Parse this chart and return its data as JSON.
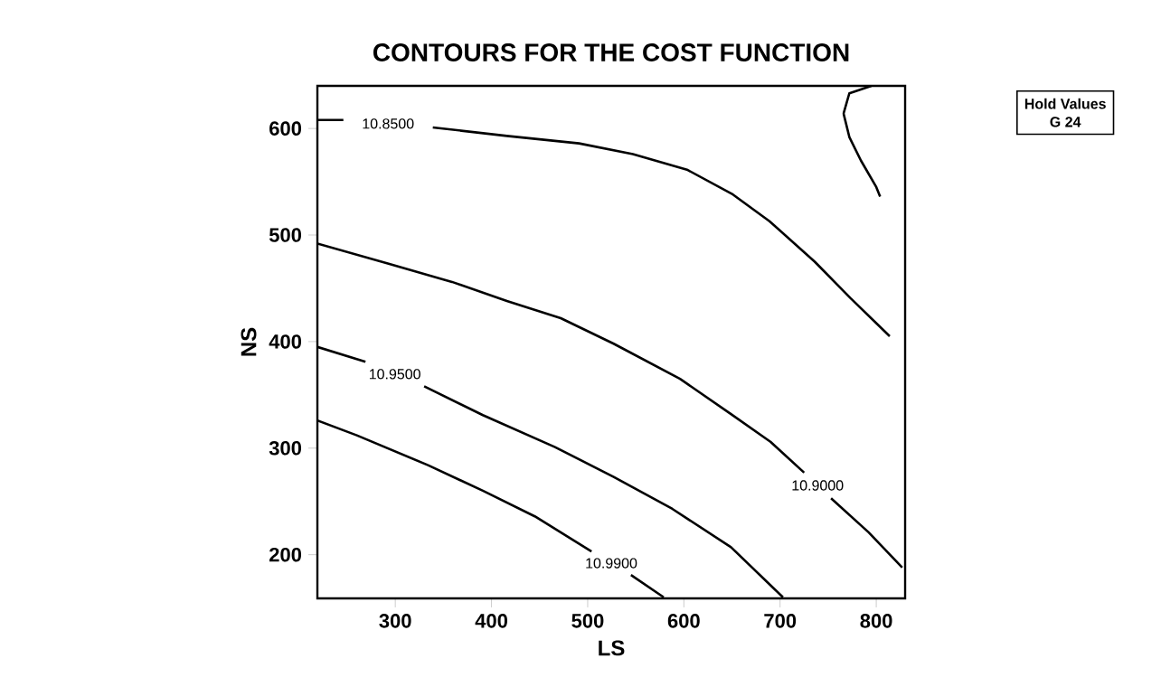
{
  "chart_data": {
    "type": "line",
    "title": "CONTOURS FOR THE COST FUNCTION",
    "xlabel": "LS",
    "ylabel": "NS",
    "xlim": [
      219,
      830
    ],
    "ylim": [
      159,
      640
    ],
    "xticks": [
      300,
      400,
      500,
      600,
      700,
      800
    ],
    "yticks": [
      200,
      300,
      400,
      500,
      600
    ],
    "series": [
      {
        "name": "10.8500",
        "color": "#000000",
        "x": [
          219,
          246,
          270,
          339,
          416,
          491,
          547,
          604,
          651,
          689,
          736,
          773,
          814
        ],
        "values": [
          608,
          608,
          null,
          601,
          593,
          586,
          576,
          561,
          538,
          513,
          475,
          441,
          405
        ]
      },
      {
        "color": "#000000",
        "x": [
          795,
          772,
          766,
          772,
          784,
          800,
          804
        ],
        "values": [
          640,
          633,
          614,
          592,
          570,
          545,
          536
        ]
      },
      {
        "name": "10.9000",
        "color": "#000000",
        "x": [
          219,
          293,
          359,
          416,
          472,
          527,
          596,
          649,
          690,
          725,
          739,
          753,
          792,
          827
        ],
        "values": [
          492,
          473,
          456,
          438,
          422,
          398,
          365,
          332,
          306,
          277,
          null,
          253,
          221,
          188
        ]
      },
      {
        "name": "10.9500",
        "color": "#000000",
        "x": [
          219,
          269,
          302,
          330,
          391,
          466,
          527,
          588,
          649,
          703
        ],
        "values": [
          395,
          381,
          null,
          358,
          331,
          301,
          273,
          243,
          207,
          160
        ]
      },
      {
        "name": "10.9900",
        "color": "#000000",
        "x": [
          219,
          260,
          334,
          391,
          445,
          504,
          527,
          545,
          579
        ],
        "values": [
          326,
          312,
          284,
          260,
          236,
          203,
          null,
          181,
          160
        ]
      }
    ],
    "annotations": [
      "Hold Values",
      "G  24"
    ]
  }
}
